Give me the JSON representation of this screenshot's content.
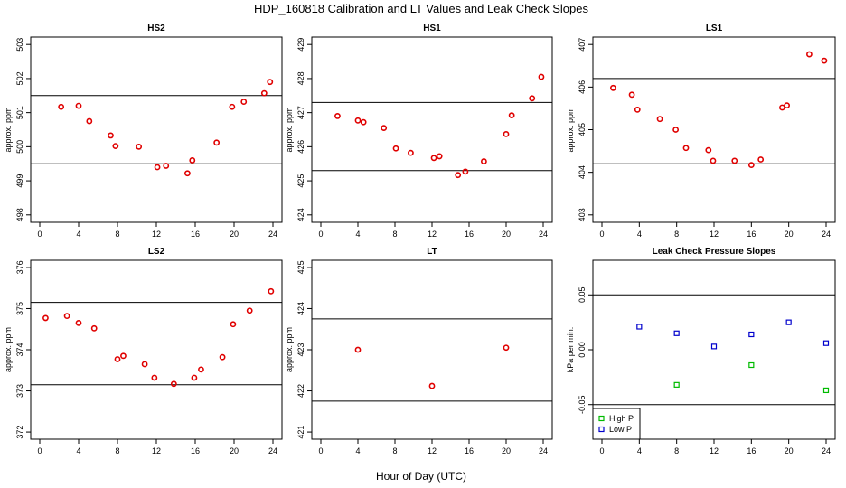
{
  "title": "HDP_160818  Calibration and LT Values and Leak Check Slopes",
  "xlabel": "Hour of Day (UTC)",
  "colors": {
    "red": "#e00000",
    "green": "#00bb00",
    "blue": "#0000cc",
    "line": "#000000"
  },
  "chart_data": [
    {
      "type": "scatter",
      "title": "HS2",
      "ylabel": "approx. ppm",
      "xlim": [
        0,
        24
      ],
      "ylim": [
        498,
        503
      ],
      "xticks": [
        0,
        4,
        8,
        12,
        16,
        20,
        24
      ],
      "yticks": [
        498,
        499,
        500,
        501,
        502,
        503
      ],
      "hlines": [
        499.5,
        501.5
      ],
      "series": [
        {
          "color": "red",
          "marker": "circle",
          "x": [
            2.2,
            4.0,
            5.1,
            7.3,
            7.8,
            10.2,
            12.1,
            13.0,
            15.2,
            15.7,
            18.2,
            19.8,
            21.0,
            23.1,
            23.7
          ],
          "y": [
            501.17,
            501.2,
            500.75,
            500.33,
            500.02,
            500.0,
            499.4,
            499.44,
            499.22,
            499.6,
            500.12,
            501.17,
            501.32,
            501.57,
            501.9
          ]
        }
      ]
    },
    {
      "type": "scatter",
      "title": "HS1",
      "ylabel": "approx. ppm",
      "xlim": [
        0,
        24
      ],
      "ylim": [
        424,
        429
      ],
      "xticks": [
        0,
        4,
        8,
        12,
        16,
        20,
        24
      ],
      "yticks": [
        424,
        425,
        426,
        427,
        428,
        429
      ],
      "hlines": [
        425.3,
        427.3
      ],
      "series": [
        {
          "color": "red",
          "marker": "circle",
          "x": [
            1.8,
            4.0,
            4.6,
            6.8,
            8.1,
            9.7,
            12.2,
            12.8,
            14.8,
            15.6,
            17.6,
            20.0,
            20.6,
            22.8,
            23.8
          ],
          "y": [
            426.9,
            426.77,
            426.72,
            426.55,
            425.95,
            425.82,
            425.67,
            425.72,
            425.17,
            425.27,
            425.57,
            426.37,
            426.92,
            427.42,
            428.05
          ]
        }
      ]
    },
    {
      "type": "scatter",
      "title": "LS1",
      "ylabel": "approx. ppm",
      "xlim": [
        0,
        24
      ],
      "ylim": [
        403,
        407
      ],
      "xticks": [
        0,
        4,
        8,
        12,
        16,
        20,
        24
      ],
      "yticks": [
        403,
        404,
        405,
        406,
        407
      ],
      "hlines": [
        404.2,
        406.2
      ],
      "series": [
        {
          "color": "red",
          "marker": "circle",
          "x": [
            1.2,
            3.2,
            3.8,
            6.2,
            7.9,
            9.0,
            11.4,
            11.9,
            14.2,
            16.0,
            17.0,
            19.3,
            19.8,
            22.2,
            23.8
          ],
          "y": [
            405.98,
            405.82,
            405.47,
            405.25,
            405.0,
            404.57,
            404.52,
            404.27,
            404.27,
            404.17,
            404.3,
            405.52,
            405.57,
            406.77,
            406.62
          ]
        }
      ]
    },
    {
      "type": "scatter",
      "title": "LS2",
      "ylabel": "approx. ppm",
      "xlim": [
        0,
        24
      ],
      "ylim": [
        372,
        376
      ],
      "xticks": [
        0,
        4,
        8,
        12,
        16,
        20,
        24
      ],
      "yticks": [
        372,
        373,
        374,
        375,
        376
      ],
      "hlines": [
        373.15,
        375.15
      ],
      "series": [
        {
          "color": "red",
          "marker": "circle",
          "x": [
            0.6,
            2.8,
            4.0,
            5.6,
            8.0,
            8.6,
            10.8,
            11.8,
            13.8,
            15.9,
            16.6,
            18.8,
            19.9,
            21.6,
            23.8
          ],
          "y": [
            374.77,
            374.82,
            374.65,
            374.52,
            373.77,
            373.85,
            373.65,
            373.32,
            373.17,
            373.32,
            373.52,
            373.82,
            374.62,
            374.95,
            375.42
          ]
        }
      ]
    },
    {
      "type": "scatter",
      "title": "LT",
      "ylabel": "approx. ppm",
      "xlim": [
        0,
        24
      ],
      "ylim": [
        421,
        425
      ],
      "xticks": [
        0,
        4,
        8,
        12,
        16,
        20,
        24
      ],
      "yticks": [
        421,
        422,
        423,
        424,
        425
      ],
      "hlines": [
        421.75,
        423.75
      ],
      "series": [
        {
          "color": "red",
          "marker": "circle",
          "x": [
            4.0,
            12.0,
            20.0
          ],
          "y": [
            423.0,
            422.12,
            423.05
          ]
        }
      ]
    },
    {
      "type": "scatter",
      "title": "Leak Check Pressure Slopes",
      "ylabel": "kPa per min.",
      "xlim": [
        0,
        24
      ],
      "ylim": [
        -0.075,
        0.075
      ],
      "xticks": [
        0,
        4,
        8,
        12,
        16,
        20,
        24
      ],
      "yticks": [
        -0.05,
        0.0,
        0.05
      ],
      "ytick_labels": [
        "-0.05",
        "0.00",
        "0.05"
      ],
      "hlines": [
        -0.05,
        0.05
      ],
      "legend": "bottom-left",
      "series": [
        {
          "name": "High P",
          "color": "green",
          "marker": "square",
          "x": [
            8,
            16,
            24
          ],
          "y": [
            -0.032,
            -0.014,
            -0.037
          ]
        },
        {
          "name": "Low P",
          "color": "blue",
          "marker": "square",
          "x": [
            4,
            8,
            12,
            16,
            20,
            24
          ],
          "y": [
            0.021,
            0.015,
            0.003,
            0.014,
            0.025,
            0.006
          ]
        }
      ]
    }
  ]
}
